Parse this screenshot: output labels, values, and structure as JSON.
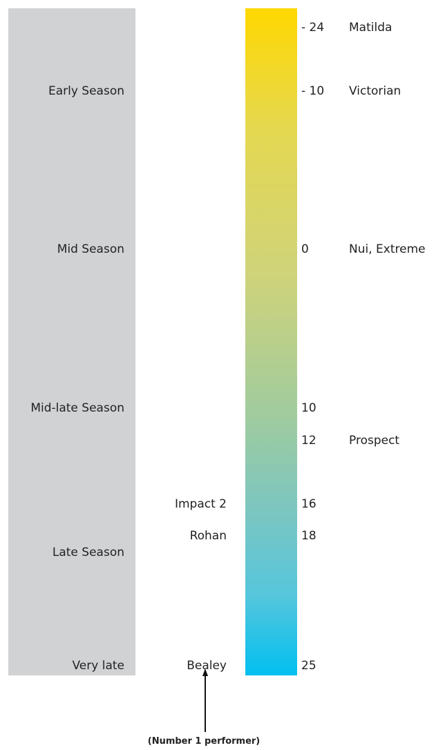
{
  "seasons": [
    {
      "label": "Early Season"
    },
    {
      "label": "Mid Season"
    },
    {
      "label": "Mid-late Season"
    },
    {
      "label": "Late Season"
    },
    {
      "label": "Very late"
    }
  ],
  "scale_colors": {
    "top": "#ffd800",
    "bottom": "#02bff0",
    "panel": "#d1d2d4"
  },
  "ticks": [
    {
      "value": "- 24",
      "variety_right": "Matilda"
    },
    {
      "value": "- 10",
      "variety_right": "Victorian"
    },
    {
      "value": "0",
      "variety_right": "Nui, Extreme"
    },
    {
      "value": "10",
      "variety_right": ""
    },
    {
      "value": "12",
      "variety_right": "Prospect"
    },
    {
      "value": "16",
      "variety_left": "Impact 2"
    },
    {
      "value": "18",
      "variety_left": "Rohan"
    },
    {
      "value": "25",
      "variety_left": "Bealey"
    }
  ],
  "footnote": "(Number 1 performer)"
}
